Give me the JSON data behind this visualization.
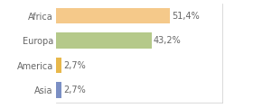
{
  "categories": [
    "Africa",
    "Europa",
    "America",
    "Asia"
  ],
  "values": [
    51.4,
    43.2,
    2.7,
    2.7
  ],
  "labels": [
    "51,4%",
    "43,2%",
    "2,7%",
    "2,7%"
  ],
  "bar_colors": [
    "#f5c98a",
    "#b5c98a",
    "#e8b84b",
    "#7b8fc4"
  ],
  "background_color": "#ffffff",
  "xlim": [
    0,
    75
  ],
  "bar_height": 0.65,
  "label_fontsize": 7.0,
  "tick_fontsize": 7.0,
  "text_color": "#666666"
}
